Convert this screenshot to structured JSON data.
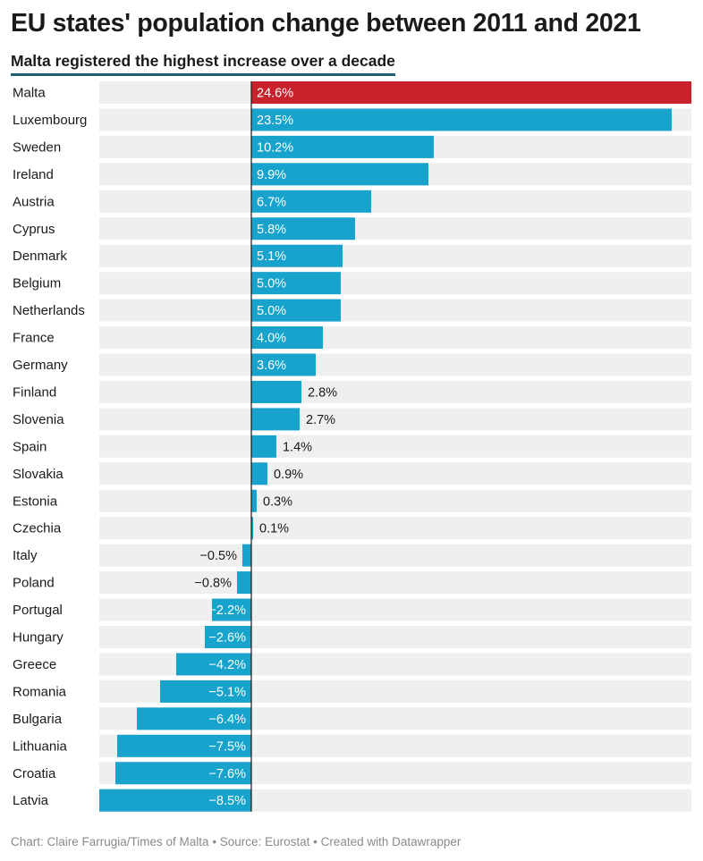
{
  "title": "EU states' population change between 2011 and 2021",
  "subtitle": "Malta registered the highest increase over a decade",
  "footer": "Chart: Claire Farrugia/Times of Malta • Source: Eurostat • Created with Datawrapper",
  "colors": {
    "highlight": "#c8232c",
    "bar": "#18a3cd",
    "track": "#efefef",
    "axis": "#1a1a1a"
  },
  "chart_data": {
    "type": "bar",
    "orientation": "horizontal",
    "categories": [
      "Malta",
      "Luxembourg",
      "Sweden",
      "Ireland",
      "Austria",
      "Cyprus",
      "Denmark",
      "Belgium",
      "Netherlands",
      "France",
      "Germany",
      "Finland",
      "Slovenia",
      "Spain",
      "Slovakia",
      "Estonia",
      "Czechia",
      "Italy",
      "Poland",
      "Portugal",
      "Hungary",
      "Greece",
      "Romania",
      "Bulgaria",
      "Lithuania",
      "Croatia",
      "Latvia"
    ],
    "values": [
      24.6,
      23.5,
      10.2,
      9.9,
      6.7,
      5.8,
      5.1,
      5.0,
      5.0,
      4.0,
      3.6,
      2.8,
      2.7,
      1.4,
      0.9,
      0.3,
      0.1,
      -0.5,
      -0.8,
      -2.2,
      -2.6,
      -4.2,
      -5.1,
      -6.4,
      -7.5,
      -7.6,
      -8.5
    ],
    "labels": [
      "24.6%",
      "23.5%",
      "10.2%",
      "9.9%",
      "6.7%",
      "5.8%",
      "5.1%",
      "5.0%",
      "5.0%",
      "4.0%",
      "3.6%",
      "2.8%",
      "2.7%",
      "1.4%",
      "0.9%",
      "0.3%",
      "0.1%",
      "−0.5%",
      "−0.8%",
      "−2.2%",
      "−2.6%",
      "−4.2%",
      "−5.1%",
      "−6.4%",
      "−7.5%",
      "−7.6%",
      "−8.5%"
    ],
    "highlight": "Malta",
    "xlim": [
      -8.5,
      24.6
    ]
  }
}
